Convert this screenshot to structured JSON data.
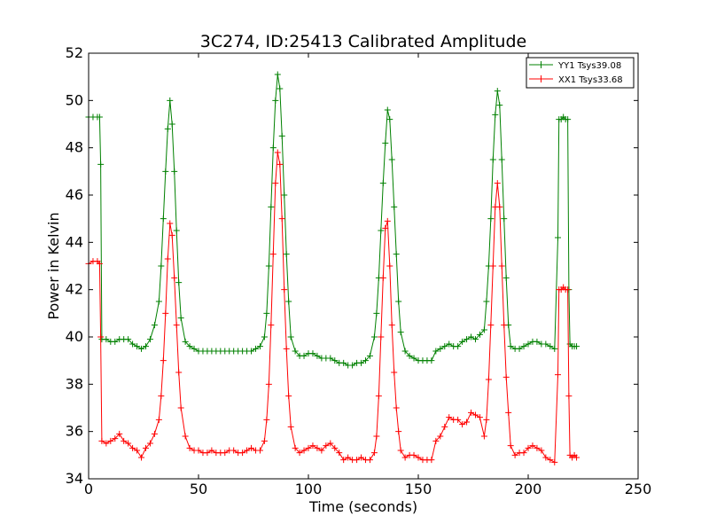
{
  "chart_data": {
    "type": "line",
    "title": "3C274, ID:25413 Calibrated Amplitude",
    "xlabel": "Time (seconds)",
    "ylabel": "Power in Kelvin",
    "xlim": [
      0,
      250
    ],
    "ylim": [
      34,
      52
    ],
    "xticks": [
      0,
      50,
      100,
      150,
      200,
      250
    ],
    "yticks": [
      34,
      36,
      38,
      40,
      42,
      44,
      46,
      48,
      50,
      52
    ],
    "grid": false,
    "legend_position": "top-right",
    "marker": "plus",
    "series": [
      {
        "name": "YY1 Tsys39.08",
        "color": "#008000",
        "x": [
          0,
          2,
          4,
          5,
          5.5,
          6,
          8,
          10,
          12,
          14,
          16,
          18,
          20,
          22,
          24,
          26,
          28,
          30,
          32,
          33,
          34,
          35,
          36,
          37,
          38,
          39,
          40,
          41,
          42,
          44,
          46,
          48,
          50,
          52,
          54,
          56,
          58,
          60,
          62,
          64,
          66,
          68,
          70,
          72,
          74,
          76,
          78,
          80,
          81,
          82,
          83,
          84,
          85,
          86,
          87,
          88,
          89,
          90,
          91,
          92,
          94,
          96,
          98,
          100,
          102,
          104,
          106,
          108,
          110,
          112,
          114,
          116,
          118,
          120,
          122,
          124,
          126,
          128,
          130,
          131,
          132,
          133,
          134,
          135,
          136,
          137,
          138,
          139,
          140,
          141,
          142,
          144,
          146,
          148,
          150,
          152,
          154,
          156,
          158,
          160,
          162,
          164,
          166,
          168,
          170,
          172,
          174,
          176,
          178,
          180,
          181,
          182,
          183,
          184,
          185,
          186,
          187,
          188,
          189,
          190,
          191,
          192,
          194,
          196,
          198,
          200,
          202,
          204,
          206,
          208,
          210,
          212,
          213.5,
          214,
          215,
          216,
          217,
          218,
          218.5,
          219,
          220,
          221,
          222
        ],
        "values": [
          49.3,
          49.3,
          49.3,
          49.3,
          47.3,
          39.9,
          39.9,
          39.8,
          39.8,
          39.9,
          39.9,
          39.9,
          39.7,
          39.6,
          39.5,
          39.6,
          39.9,
          40.5,
          41.5,
          43,
          45,
          47,
          48.8,
          50,
          49,
          47,
          44.5,
          42.3,
          40.8,
          39.8,
          39.6,
          39.5,
          39.4,
          39.4,
          39.4,
          39.4,
          39.4,
          39.4,
          39.4,
          39.4,
          39.4,
          39.4,
          39.4,
          39.4,
          39.4,
          39.5,
          39.6,
          40,
          41,
          43,
          45.5,
          48,
          50,
          51.1,
          50.5,
          48.5,
          46,
          43.5,
          41.5,
          40,
          39.4,
          39.2,
          39.2,
          39.3,
          39.3,
          39.2,
          39.1,
          39.1,
          39.1,
          39,
          38.9,
          38.9,
          38.8,
          38.8,
          38.9,
          38.9,
          39,
          39.2,
          40,
          41,
          42.5,
          44.5,
          46.5,
          48.2,
          49.6,
          49.2,
          47.5,
          45.5,
          43.5,
          41.5,
          40.2,
          39.4,
          39.2,
          39.1,
          39,
          39,
          39,
          39,
          39.4,
          39.5,
          39.6,
          39.7,
          39.6,
          39.6,
          39.8,
          39.9,
          40,
          39.9,
          40.1,
          40.3,
          41.5,
          43,
          45,
          47.5,
          49.4,
          50.4,
          49.8,
          47.5,
          45,
          42.5,
          40.5,
          39.6,
          39.5,
          39.5,
          39.6,
          39.7,
          39.8,
          39.8,
          39.7,
          39.7,
          39.6,
          39.5,
          44.2,
          49.2,
          49.2,
          49.3,
          49.2,
          49.2,
          42,
          39.7,
          39.6,
          39.6,
          39.6
        ]
      },
      {
        "name": "XX1 Tsys33.68",
        "color": "#ff0000",
        "x": [
          0,
          2,
          4,
          5,
          5.5,
          6,
          8,
          10,
          12,
          14,
          16,
          18,
          20,
          22,
          24,
          26,
          28,
          30,
          32,
          33,
          34,
          35,
          36,
          37,
          38,
          39,
          40,
          41,
          42,
          44,
          46,
          48,
          50,
          52,
          54,
          56,
          58,
          60,
          62,
          64,
          66,
          68,
          70,
          72,
          74,
          76,
          78,
          80,
          81,
          82,
          83,
          84,
          85,
          86,
          87,
          88,
          89,
          90,
          91,
          92,
          94,
          96,
          98,
          100,
          102,
          104,
          106,
          108,
          110,
          112,
          114,
          116,
          118,
          120,
          122,
          124,
          126,
          128,
          130,
          131,
          132,
          133,
          134,
          135,
          136,
          137,
          138,
          139,
          140,
          141,
          142,
          144,
          146,
          148,
          150,
          152,
          154,
          156,
          158,
          160,
          162,
          164,
          166,
          168,
          170,
          172,
          174,
          176,
          178,
          180,
          181,
          182,
          183,
          184,
          185,
          186,
          187,
          188,
          189,
          190,
          191,
          192,
          194,
          196,
          198,
          200,
          202,
          204,
          206,
          208,
          210,
          212,
          213.5,
          214,
          215,
          216,
          217,
          218,
          218.5,
          219,
          220,
          221,
          222
        ],
        "values": [
          43.1,
          43.2,
          43.2,
          43.1,
          40,
          35.6,
          35.5,
          35.6,
          35.7,
          35.9,
          35.6,
          35.5,
          35.3,
          35.2,
          34.9,
          35.3,
          35.5,
          35.9,
          36.5,
          37.5,
          39,
          41,
          43.3,
          44.8,
          44.3,
          42.5,
          40.5,
          38.5,
          37,
          35.8,
          35.3,
          35.2,
          35.2,
          35.1,
          35.1,
          35.2,
          35.1,
          35.1,
          35.1,
          35.2,
          35.2,
          35.1,
          35.1,
          35.2,
          35.3,
          35.2,
          35.2,
          35.6,
          36.5,
          38,
          40.5,
          43.5,
          46.5,
          47.8,
          47.3,
          45,
          42,
          39.5,
          37.5,
          36.2,
          35.3,
          35.1,
          35.2,
          35.3,
          35.4,
          35.3,
          35.2,
          35.4,
          35.5,
          35.3,
          35.1,
          34.8,
          34.9,
          34.8,
          34.8,
          34.9,
          34.8,
          34.8,
          35.1,
          35.8,
          37.5,
          40,
          42.5,
          44.6,
          44.9,
          43,
          40.5,
          38.5,
          37,
          36,
          35.2,
          34.9,
          35,
          35,
          34.9,
          34.8,
          34.8,
          34.8,
          35.6,
          35.8,
          36.2,
          36.6,
          36.5,
          36.5,
          36.3,
          36.4,
          36.8,
          36.7,
          36.6,
          35.8,
          36.5,
          38.2,
          40.5,
          43,
          45.5,
          46.5,
          45.5,
          43,
          40.5,
          38.3,
          36.8,
          35.4,
          35,
          35.1,
          35.1,
          35.3,
          35.4,
          35.3,
          35.2,
          34.9,
          34.8,
          34.7,
          38.4,
          42,
          42,
          42.1,
          42,
          42,
          37.5,
          35,
          34.9,
          35,
          34.9
        ]
      }
    ]
  }
}
